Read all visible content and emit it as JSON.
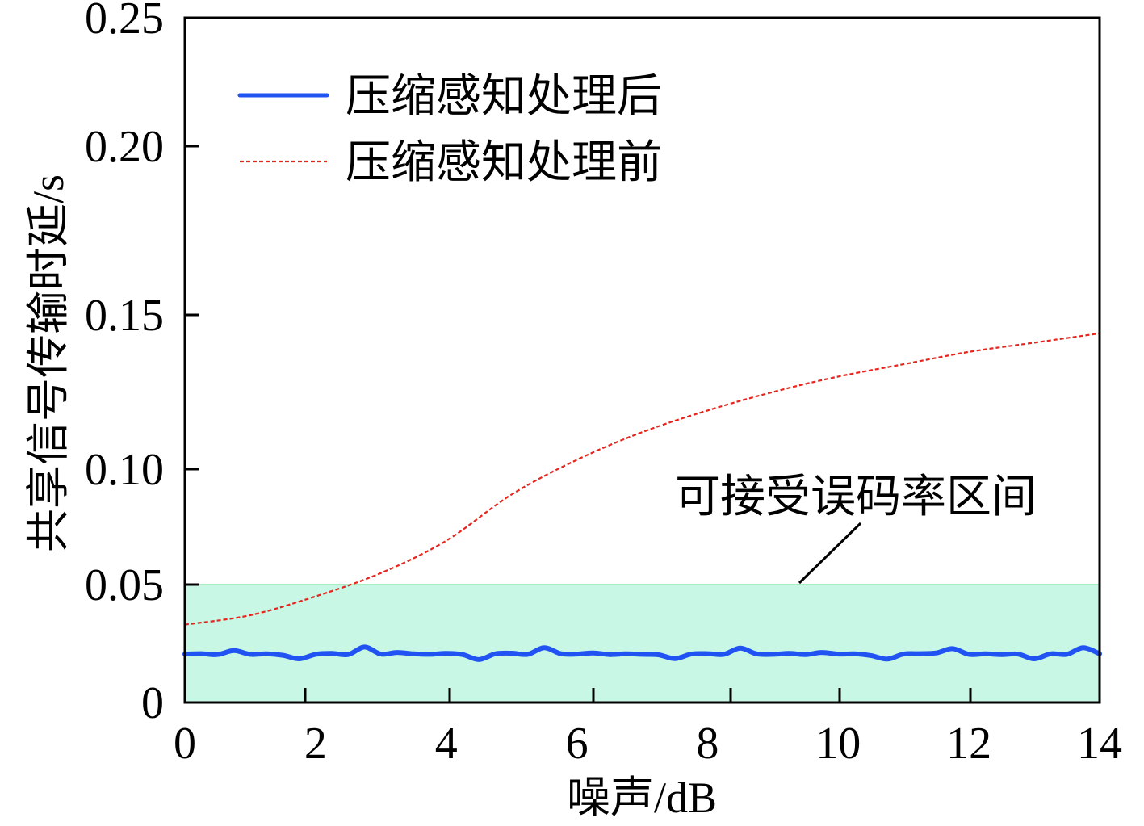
{
  "chart_data": {
    "type": "line",
    "xlabel": "噪声/dB",
    "ylabel": "共享信号传输时延/s",
    "xlim": [
      0,
      14
    ],
    "ylim": [
      0,
      0.25
    ],
    "x_ticks": {
      "values": [
        0,
        2,
        4,
        6,
        8,
        10,
        12,
        14
      ],
      "labels": [
        "0",
        "2",
        "4",
        "6",
        "8",
        "10",
        "12",
        "14"
      ]
    },
    "y_ticks": {
      "values": [
        0,
        0.05,
        0.1,
        0.15,
        0.2,
        0.25
      ],
      "labels": [
        "0",
        "0.05",
        "0.10",
        "0.15",
        "0.20",
        "0.25"
      ]
    },
    "grid": false,
    "legend": {
      "placement": "top-left"
    },
    "series": [
      {
        "name": "压缩感知处理后",
        "color": "#2152f2",
        "dashed": false,
        "x": [
          0,
          0.25,
          0.5,
          0.75,
          1,
          1.25,
          1.5,
          1.75,
          2,
          2.25,
          2.5,
          2.75,
          3,
          3.25,
          3.5,
          3.75,
          4,
          4.25,
          4.5,
          4.75,
          5,
          5.25,
          5.5,
          5.75,
          6,
          6.25,
          6.5,
          6.75,
          7,
          7.25,
          7.5,
          7.75,
          8,
          8.25,
          8.5,
          8.75,
          9,
          9.25,
          9.5,
          9.75,
          10,
          10.25,
          10.5,
          10.75,
          11,
          11.25,
          11.5,
          11.75,
          12,
          12.25,
          12.5,
          12.75,
          13,
          13.25,
          13.5,
          13.75,
          14
        ],
        "y": [
          0.0205,
          0.0207,
          0.0203,
          0.022,
          0.0204,
          0.0206,
          0.02,
          0.0185,
          0.0204,
          0.0208,
          0.0203,
          0.0235,
          0.0205,
          0.0212,
          0.0206,
          0.0204,
          0.0208,
          0.0203,
          0.0182,
          0.0206,
          0.0209,
          0.0204,
          0.0232,
          0.0207,
          0.0205,
          0.021,
          0.0203,
          0.0206,
          0.0204,
          0.0202,
          0.0186,
          0.0205,
          0.0207,
          0.0204,
          0.023,
          0.0206,
          0.0204,
          0.0208,
          0.0203,
          0.0212,
          0.0205,
          0.0206,
          0.0199,
          0.0184,
          0.0205,
          0.0207,
          0.021,
          0.0228,
          0.0204,
          0.0206,
          0.0203,
          0.0205,
          0.0185,
          0.0206,
          0.0204,
          0.0232,
          0.0206
        ]
      },
      {
        "name": "压缩感知处理前",
        "color": "#e5261f",
        "dashed": true,
        "x": [
          0,
          1,
          2,
          3,
          4,
          5,
          6,
          7,
          8,
          9,
          10,
          11,
          12,
          13,
          14
        ],
        "y": [
          0.033,
          0.037,
          0.045,
          0.055,
          0.069,
          0.089,
          0.103,
          0.112,
          0.119,
          0.125,
          0.13,
          0.134,
          0.138,
          0.141,
          0.144
        ]
      }
    ],
    "bands": [
      {
        "label": "可接受误码率区间",
        "y_range": [
          0,
          0.05
        ],
        "color": "#c8f7e5",
        "edge_color": "#a9eec3"
      }
    ]
  }
}
